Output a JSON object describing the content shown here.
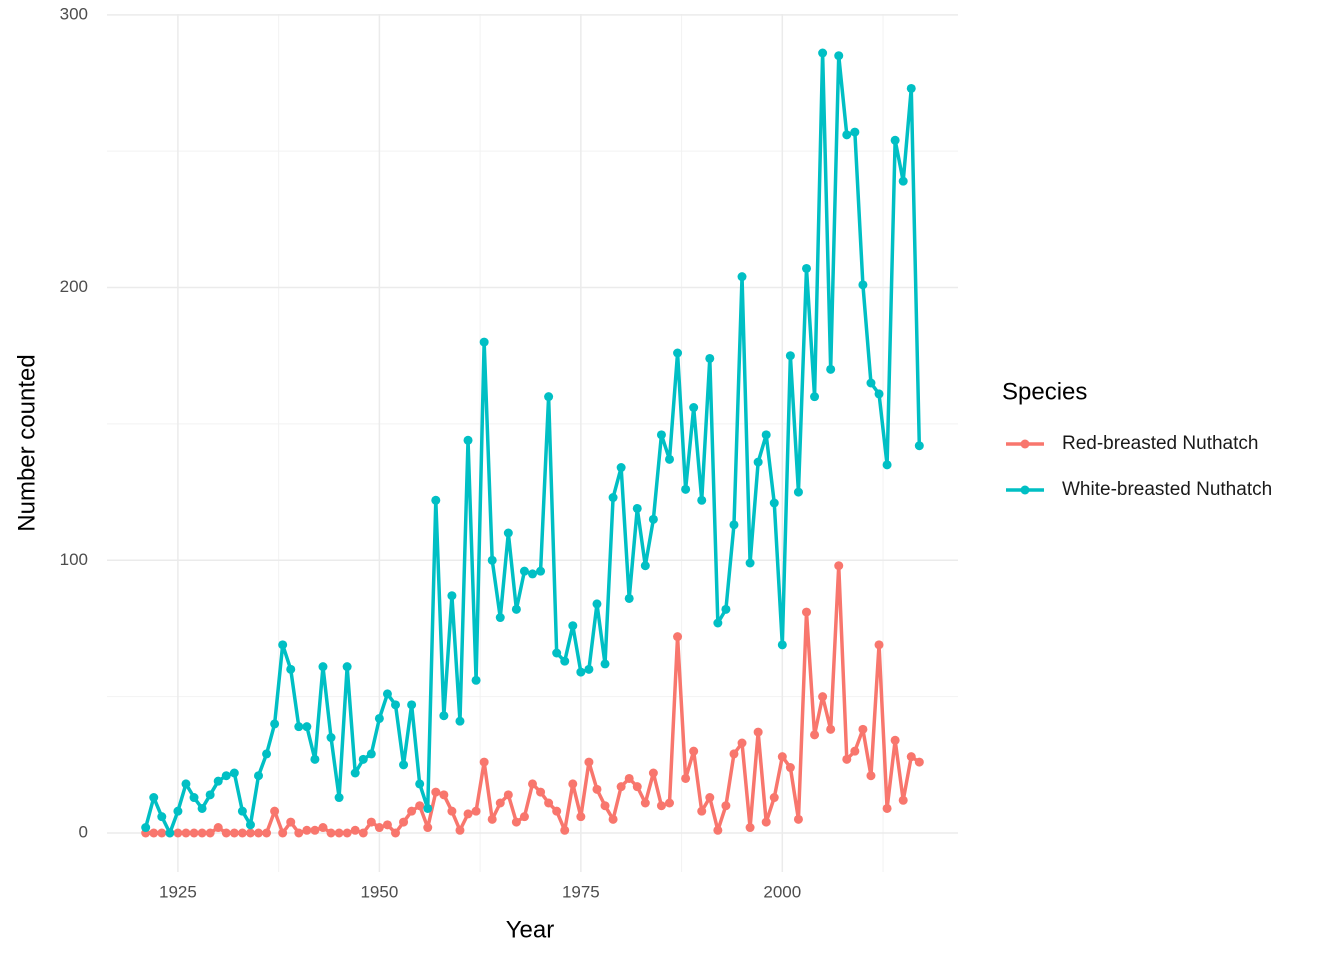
{
  "chart_data": {
    "type": "line",
    "x_label": "Year",
    "y_label": "Number counted",
    "legend_title": "Species",
    "x": [
      1921,
      1922,
      1923,
      1924,
      1925,
      1926,
      1927,
      1928,
      1929,
      1930,
      1931,
      1932,
      1933,
      1934,
      1935,
      1936,
      1937,
      1938,
      1939,
      1940,
      1941,
      1942,
      1943,
      1944,
      1945,
      1946,
      1947,
      1948,
      1949,
      1950,
      1951,
      1952,
      1953,
      1954,
      1955,
      1956,
      1957,
      1958,
      1959,
      1960,
      1961,
      1962,
      1963,
      1964,
      1965,
      1966,
      1967,
      1968,
      1969,
      1970,
      1971,
      1972,
      1973,
      1974,
      1975,
      1976,
      1977,
      1978,
      1979,
      1980,
      1981,
      1982,
      1983,
      1984,
      1985,
      1986,
      1987,
      1988,
      1989,
      1990,
      1991,
      1992,
      1993,
      1994,
      1995,
      1996,
      1997,
      1998,
      1999,
      2000,
      2001,
      2002,
      2003,
      2004,
      2005,
      2006,
      2007,
      2008,
      2009,
      2010,
      2011,
      2012,
      2013,
      2014,
      2015,
      2016,
      2017
    ],
    "series": [
      {
        "name": "Red-breasted Nuthatch",
        "color": "#F8766D",
        "values": [
          0,
          0,
          0,
          0,
          0,
          0,
          0,
          0,
          0,
          2,
          0,
          0,
          0,
          0,
          0,
          0,
          8,
          0,
          4,
          0,
          1,
          1,
          2,
          0,
          0,
          0,
          1,
          0,
          4,
          2,
          3,
          0,
          4,
          8,
          10,
          2,
          15,
          14,
          8,
          1,
          7,
          8,
          26,
          5,
          11,
          14,
          4,
          6,
          18,
          15,
          11,
          8,
          1,
          18,
          6,
          26,
          16,
          10,
          5,
          17,
          20,
          17,
          11,
          22,
          10,
          11,
          72,
          20,
          30,
          8,
          13,
          1,
          10,
          29,
          33,
          2,
          37,
          4,
          13,
          28,
          24,
          5,
          81,
          36,
          50,
          38,
          98,
          27,
          30,
          38,
          21,
          69,
          9,
          34,
          12,
          28,
          26
        ]
      },
      {
        "name": "White-breasted Nuthatch",
        "color": "#00BFC4",
        "values": [
          2,
          13,
          6,
          0,
          8,
          18,
          13,
          9,
          14,
          19,
          21,
          22,
          8,
          3,
          21,
          29,
          40,
          69,
          60,
          39,
          39,
          27,
          61,
          35,
          13,
          61,
          22,
          27,
          29,
          42,
          51,
          47,
          25,
          47,
          18,
          9,
          122,
          43,
          87,
          41,
          144,
          56,
          180,
          100,
          79,
          110,
          82,
          96,
          95,
          96,
          160,
          66,
          63,
          76,
          59,
          60,
          84,
          62,
          123,
          134,
          86,
          119,
          98,
          115,
          146,
          137,
          176,
          126,
          156,
          122,
          174,
          77,
          82,
          113,
          204,
          99,
          136,
          146,
          121,
          69,
          175,
          125,
          207,
          160,
          286,
          170,
          285,
          256,
          257,
          201,
          165,
          161,
          135,
          254,
          239,
          273,
          142
        ]
      }
    ],
    "xlim": [
      1916.2,
      2021.8
    ],
    "xticks": [
      1925,
      1950,
      1975,
      2000
    ],
    "xticks_minor": [
      1937.5,
      1962.5,
      1987.5,
      2012.5
    ],
    "ylim": [
      -14.3,
      300.3
    ],
    "yticks": [
      0,
      100,
      200,
      300
    ],
    "yticks_minor": [
      50,
      150,
      250
    ],
    "grid": true,
    "legend": "right"
  }
}
